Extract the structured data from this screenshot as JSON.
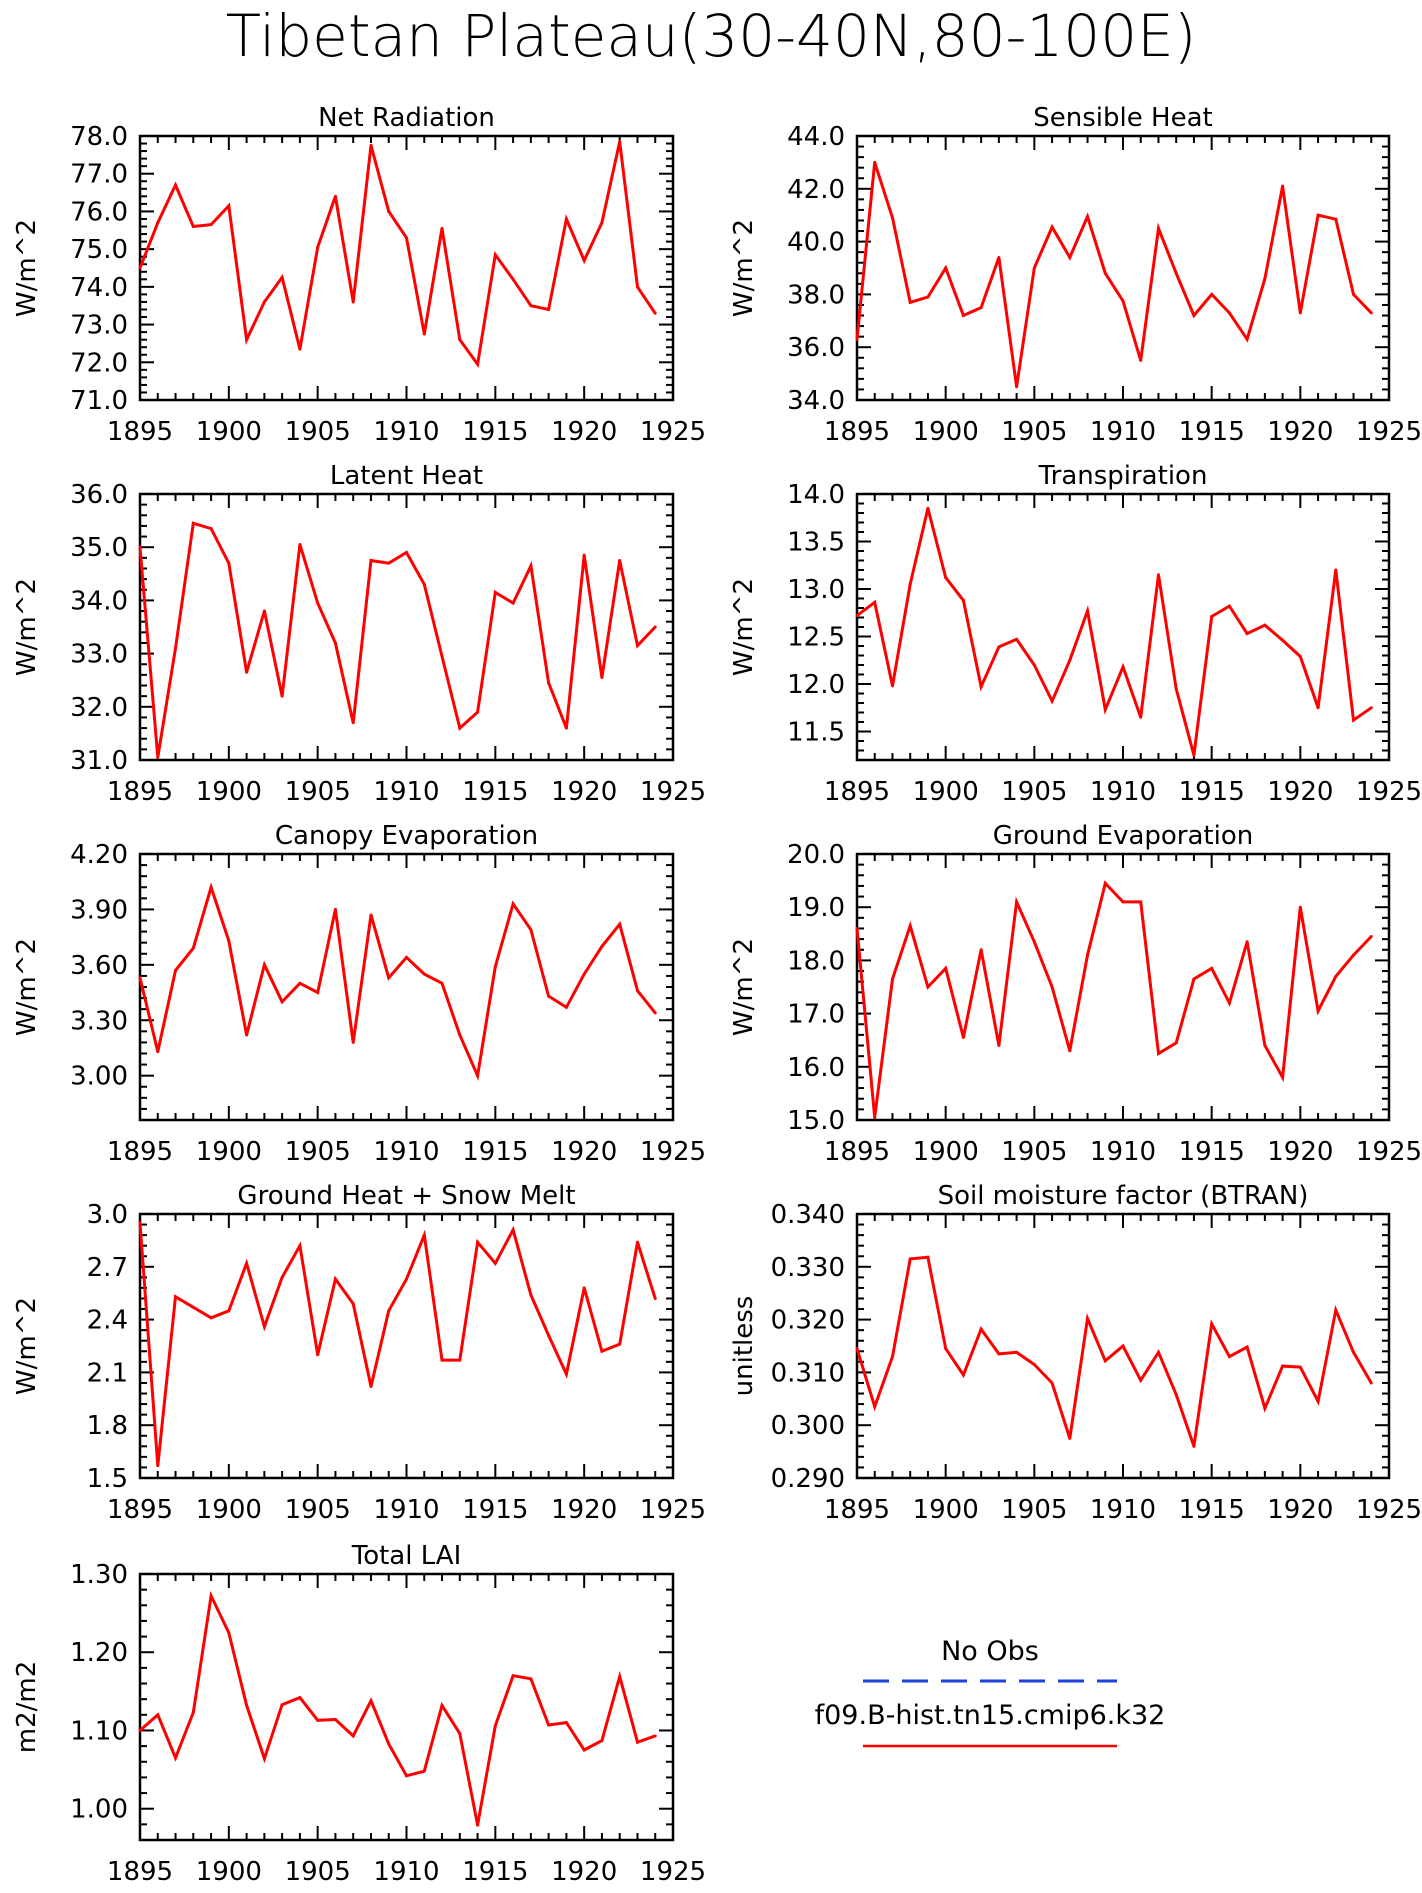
{
  "page": {
    "title": "Tibetan Plateau(30-40N,80-100E)"
  },
  "legend": {
    "obs_label": "No Obs",
    "obs_color": "#1f3fe0",
    "model_label": "f09.B-hist.tn15.cmip6.k32",
    "model_color": "#ff0000"
  },
  "chart_data": [
    {
      "type": "line",
      "title": "Net Radiation",
      "ylabel": "W/m^2",
      "xlim": [
        1895,
        1925
      ],
      "ylim": [
        71.0,
        78.0
      ],
      "xticks": [
        1895,
        1900,
        1905,
        1910,
        1915,
        1920,
        1925
      ],
      "yticks": [
        "71.0",
        "72.0",
        "73.0",
        "74.0",
        "75.0",
        "76.0",
        "77.0",
        "78.0"
      ],
      "x": [
        1895,
        1896,
        1897,
        1898,
        1899,
        1900,
        1901,
        1902,
        1903,
        1904,
        1905,
        1906,
        1907,
        1908,
        1909,
        1910,
        1911,
        1912,
        1913,
        1914,
        1915,
        1916,
        1917,
        1918,
        1919,
        1920,
        1921,
        1922,
        1923,
        1924
      ],
      "series": [
        {
          "values": [
            74.5,
            75.7,
            76.7,
            75.6,
            75.65,
            76.15,
            72.6,
            73.6,
            74.25,
            72.35,
            75.05,
            76.4,
            73.6,
            77.75,
            76.0,
            75.3,
            72.75,
            75.55,
            72.6,
            71.95,
            74.85,
            74.2,
            73.5,
            73.4,
            75.8,
            74.7,
            75.7,
            77.85,
            74.0,
            73.3
          ]
        }
      ]
    },
    {
      "type": "line",
      "title": "Sensible Heat",
      "ylabel": "W/m^2",
      "xlim": [
        1895,
        1925
      ],
      "ylim": [
        34.0,
        44.0
      ],
      "xticks": [
        1895,
        1900,
        1905,
        1910,
        1915,
        1920,
        1925
      ],
      "yticks": [
        "34.0",
        "36.0",
        "38.0",
        "40.0",
        "42.0",
        "44.0"
      ],
      "x": [
        1895,
        1896,
        1897,
        1898,
        1899,
        1900,
        1901,
        1902,
        1903,
        1904,
        1905,
        1906,
        1907,
        1908,
        1909,
        1910,
        1911,
        1912,
        1913,
        1914,
        1915,
        1916,
        1917,
        1918,
        1919,
        1920,
        1921,
        1922,
        1923,
        1924
      ],
      "series": [
        {
          "values": [
            36.3,
            43.0,
            40.9,
            37.7,
            37.9,
            39.0,
            37.2,
            37.5,
            39.4,
            34.5,
            39.0,
            40.55,
            39.4,
            40.95,
            38.8,
            37.75,
            35.5,
            40.5,
            38.8,
            37.2,
            38.0,
            37.3,
            36.3,
            38.6,
            42.1,
            37.3,
            41.0,
            40.85,
            38.0,
            37.3
          ]
        }
      ]
    },
    {
      "type": "line",
      "title": "Latent Heat",
      "ylabel": "W/m^2",
      "xlim": [
        1895,
        1925
      ],
      "ylim": [
        31.0,
        36.0
      ],
      "xticks": [
        1895,
        1900,
        1905,
        1910,
        1915,
        1920,
        1925
      ],
      "yticks": [
        "31.0",
        "32.0",
        "33.0",
        "34.0",
        "35.0",
        "36.0"
      ],
      "x": [
        1895,
        1896,
        1897,
        1898,
        1899,
        1900,
        1901,
        1902,
        1903,
        1904,
        1905,
        1906,
        1907,
        1908,
        1909,
        1910,
        1911,
        1912,
        1913,
        1914,
        1915,
        1916,
        1917,
        1918,
        1919,
        1920,
        1921,
        1922,
        1923,
        1924
      ],
      "series": [
        {
          "values": [
            35.0,
            31.05,
            33.1,
            35.45,
            35.35,
            34.7,
            32.65,
            33.8,
            32.2,
            35.05,
            33.95,
            33.2,
            31.7,
            34.75,
            34.7,
            34.9,
            34.3,
            32.95,
            31.6,
            31.9,
            34.15,
            33.95,
            34.65,
            32.45,
            31.6,
            34.85,
            32.55,
            34.75,
            33.15,
            33.5
          ]
        }
      ]
    },
    {
      "type": "line",
      "title": "Transpiration",
      "ylabel": "W/m^2",
      "xlim": [
        1895,
        1925
      ],
      "ylim": [
        11.2,
        14.0
      ],
      "xticks": [
        1895,
        1900,
        1905,
        1910,
        1915,
        1920,
        1925
      ],
      "yticks": [
        "11.5",
        "12.0",
        "12.5",
        "13.0",
        "13.5",
        "14.0"
      ],
      "x": [
        1895,
        1896,
        1897,
        1898,
        1899,
        1900,
        1901,
        1902,
        1903,
        1904,
        1905,
        1906,
        1907,
        1908,
        1909,
        1910,
        1911,
        1912,
        1913,
        1914,
        1915,
        1916,
        1917,
        1918,
        1919,
        1920,
        1921,
        1922,
        1923,
        1924
      ],
      "series": [
        {
          "values": [
            12.72,
            12.86,
            11.98,
            13.05,
            13.85,
            13.12,
            12.88,
            11.97,
            12.39,
            12.47,
            12.2,
            11.82,
            12.25,
            12.77,
            11.73,
            12.18,
            11.65,
            13.15,
            11.95,
            11.25,
            12.71,
            12.82,
            12.53,
            12.62,
            12.46,
            12.29,
            11.75,
            13.2,
            11.62,
            11.75
          ]
        }
      ]
    },
    {
      "type": "line",
      "title": "Canopy Evaporation",
      "ylabel": "W/m^2",
      "xlim": [
        1895,
        1925
      ],
      "ylim": [
        2.76,
        4.2
      ],
      "xticks": [
        1895,
        1900,
        1905,
        1910,
        1915,
        1920,
        1925
      ],
      "yticks": [
        "3.00",
        "3.30",
        "3.60",
        "3.90",
        "4.20"
      ],
      "x": [
        1895,
        1896,
        1897,
        1898,
        1899,
        1900,
        1901,
        1902,
        1903,
        1904,
        1905,
        1906,
        1907,
        1908,
        1909,
        1910,
        1911,
        1912,
        1913,
        1914,
        1915,
        1916,
        1917,
        1918,
        1919,
        1920,
        1921,
        1922,
        1923,
        1924
      ],
      "series": [
        {
          "values": [
            3.53,
            3.13,
            3.57,
            3.69,
            4.02,
            3.73,
            3.22,
            3.6,
            3.4,
            3.5,
            3.45,
            3.9,
            3.18,
            3.87,
            3.53,
            3.64,
            3.55,
            3.5,
            3.22,
            3.0,
            3.59,
            3.93,
            3.79,
            3.43,
            3.37,
            3.55,
            3.7,
            3.82,
            3.46,
            3.34
          ]
        }
      ]
    },
    {
      "type": "line",
      "title": "Ground Evaporation",
      "ylabel": "W/m^2",
      "xlim": [
        1895,
        1925
      ],
      "ylim": [
        15.0,
        20.0
      ],
      "xticks": [
        1895,
        1900,
        1905,
        1910,
        1915,
        1920,
        1925
      ],
      "yticks": [
        "15.0",
        "16.0",
        "17.0",
        "18.0",
        "19.0",
        "20.0"
      ],
      "x": [
        1895,
        1896,
        1897,
        1898,
        1899,
        1900,
        1901,
        1902,
        1903,
        1904,
        1905,
        1906,
        1907,
        1908,
        1909,
        1910,
        1911,
        1912,
        1913,
        1914,
        1915,
        1916,
        1917,
        1918,
        1919,
        1920,
        1921,
        1922,
        1923,
        1924
      ],
      "series": [
        {
          "values": [
            18.6,
            15.05,
            17.65,
            18.65,
            17.5,
            17.85,
            16.55,
            18.2,
            16.4,
            19.1,
            18.35,
            17.5,
            16.3,
            18.1,
            19.45,
            19.1,
            19.1,
            16.25,
            16.45,
            17.65,
            17.85,
            17.2,
            18.35,
            16.4,
            15.8,
            19.0,
            17.05,
            17.7,
            18.1,
            18.45
          ]
        }
      ]
    },
    {
      "type": "line",
      "title": "Ground Heat + Snow Melt",
      "ylabel": "W/m^2",
      "xlim": [
        1895,
        1925
      ],
      "ylim": [
        1.5,
        3.0
      ],
      "xticks": [
        1895,
        1900,
        1905,
        1910,
        1915,
        1920,
        1925
      ],
      "yticks": [
        "1.5",
        "1.8",
        "2.1",
        "2.4",
        "2.7",
        "3.0"
      ],
      "x": [
        1895,
        1896,
        1897,
        1898,
        1899,
        1900,
        1901,
        1902,
        1903,
        1904,
        1905,
        1906,
        1907,
        1908,
        1909,
        1910,
        1911,
        1912,
        1913,
        1914,
        1915,
        1916,
        1917,
        1918,
        1919,
        1920,
        1921,
        1922,
        1923,
        1924
      ],
      "series": [
        {
          "values": [
            2.95,
            1.57,
            2.53,
            2.47,
            2.41,
            2.45,
            2.72,
            2.36,
            2.64,
            2.82,
            2.2,
            2.63,
            2.49,
            2.02,
            2.45,
            2.63,
            2.88,
            2.17,
            2.17,
            2.84,
            2.72,
            2.91,
            2.54,
            2.31,
            2.09,
            2.58,
            2.22,
            2.26,
            2.84,
            2.52
          ]
        }
      ]
    },
    {
      "type": "line",
      "title": "Soil moisture factor (BTRAN)",
      "ylabel": "unitless",
      "xlim": [
        1895,
        1925
      ],
      "ylim": [
        0.29,
        0.34
      ],
      "xticks": [
        1895,
        1900,
        1905,
        1910,
        1915,
        1920,
        1925
      ],
      "yticks": [
        "0.290",
        "0.300",
        "0.310",
        "0.320",
        "0.330",
        "0.340"
      ],
      "x": [
        1895,
        1896,
        1897,
        1898,
        1899,
        1900,
        1901,
        1902,
        1903,
        1904,
        1905,
        1906,
        1907,
        1908,
        1909,
        1910,
        1911,
        1912,
        1913,
        1914,
        1915,
        1916,
        1917,
        1918,
        1919,
        1920,
        1921,
        1922,
        1923,
        1924
      ],
      "series": [
        {
          "values": [
            0.3145,
            0.3035,
            0.313,
            0.3315,
            0.3318,
            0.3145,
            0.3095,
            0.3182,
            0.3135,
            0.3138,
            0.3115,
            0.308,
            0.2975,
            0.3202,
            0.3122,
            0.315,
            0.3085,
            0.3138,
            0.3058,
            0.296,
            0.3192,
            0.313,
            0.3148,
            0.3032,
            0.3112,
            0.311,
            0.3045,
            0.3218,
            0.3138,
            0.308
          ]
        }
      ]
    },
    {
      "type": "line",
      "title": "Total LAI",
      "ylabel": "m2/m2",
      "xlim": [
        1895,
        1925
      ],
      "ylim": [
        0.96,
        1.3
      ],
      "xticks": [
        1895,
        1900,
        1905,
        1910,
        1915,
        1920,
        1925
      ],
      "yticks": [
        "1.00",
        "1.10",
        "1.20",
        "1.30"
      ],
      "x": [
        1895,
        1896,
        1897,
        1898,
        1899,
        1900,
        1901,
        1902,
        1903,
        1904,
        1905,
        1906,
        1907,
        1908,
        1909,
        1910,
        1911,
        1912,
        1913,
        1914,
        1915,
        1916,
        1917,
        1918,
        1919,
        1920,
        1921,
        1922,
        1923,
        1924
      ],
      "series": [
        {
          "values": [
            1.1,
            1.12,
            1.065,
            1.123,
            1.272,
            1.225,
            1.132,
            1.064,
            1.133,
            1.142,
            1.113,
            1.114,
            1.093,
            1.138,
            1.083,
            1.042,
            1.048,
            1.132,
            1.096,
            0.979,
            1.106,
            1.17,
            1.166,
            1.107,
            1.11,
            1.075,
            1.087,
            1.169,
            1.085,
            1.093
          ]
        }
      ]
    }
  ]
}
